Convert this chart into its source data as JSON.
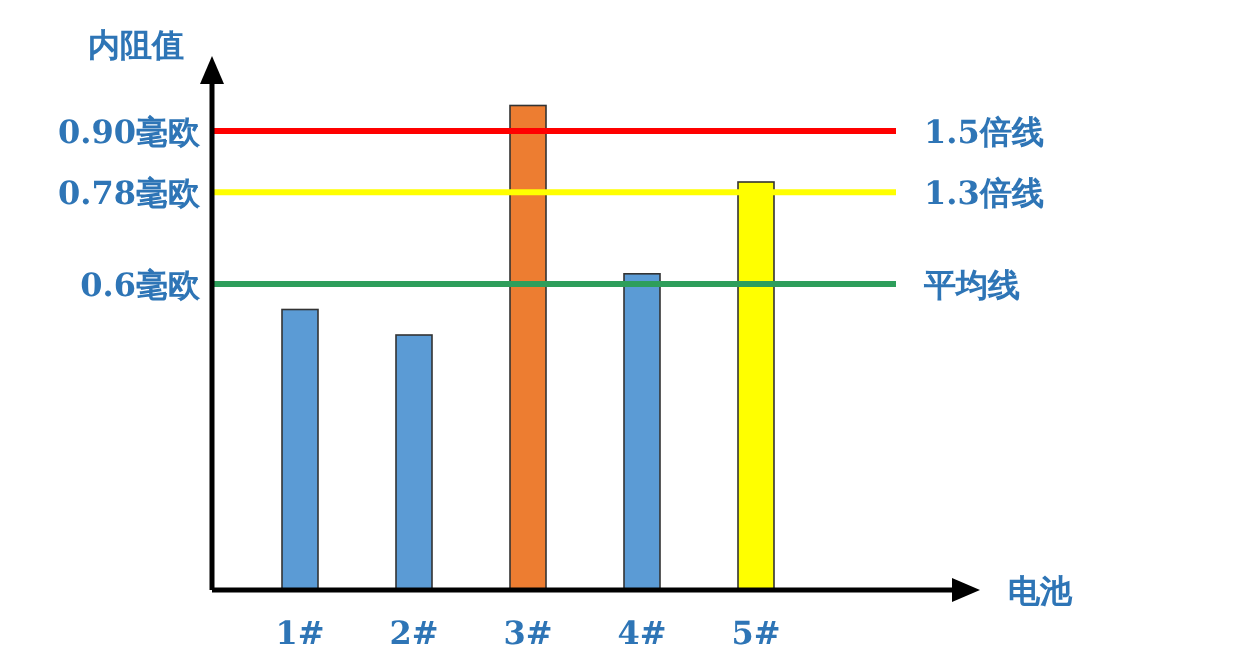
{
  "chart_data": {
    "type": "bar",
    "xlabel": "电池",
    "ylabel": "内阻值",
    "categories": [
      "1#",
      "2#",
      "3#",
      "4#",
      "5#"
    ],
    "values": [
      0.55,
      0.5,
      0.95,
      0.62,
      0.8
    ],
    "colors": [
      "#5b9bd5",
      "#5b9bd5",
      "#ed7d31",
      "#5b9bd5",
      "#ffff00"
    ],
    "ylim": [
      0,
      1
    ],
    "yticks": [
      {
        "value": 0.6,
        "label": "0.6毫欧"
      },
      {
        "value": 0.78,
        "label": "0.78毫欧"
      },
      {
        "value": 0.9,
        "label": "0.90毫欧"
      }
    ],
    "ref_lines": [
      {
        "axis": "y",
        "value": 0.9,
        "label": "1.5倍线",
        "color": "#ff0000"
      },
      {
        "axis": "y",
        "value": 0.78,
        "label": "1.3倍线",
        "color": "#ffff00"
      },
      {
        "axis": "y",
        "value": 0.6,
        "label": "平均线",
        "color": "#2e9e5b"
      }
    ],
    "grid": false
  }
}
